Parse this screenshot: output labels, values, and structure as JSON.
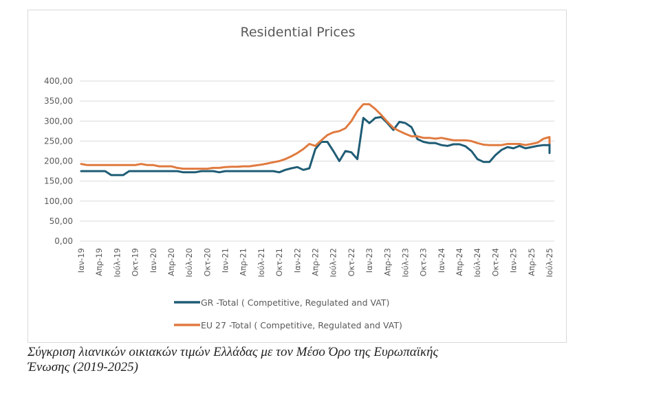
{
  "chart_data": {
    "type": "line",
    "title": "Residential Prices",
    "xlabel": "",
    "ylabel": "",
    "ylim": [
      0,
      400
    ],
    "yticks": [
      0,
      50,
      100,
      150,
      200,
      250,
      300,
      350,
      400
    ],
    "ytick_labels": [
      "0,00",
      "50,00",
      "100,00",
      "150,00",
      "200,00",
      "250,00",
      "300,00",
      "350,00",
      "400,00"
    ],
    "grid": true,
    "legend_position": "bottom",
    "x_start": "2019-01",
    "x_end": "2025-07",
    "x_tick_labels": [
      "Ιαν-19",
      "Απρ-19",
      "Ιούλ-19",
      "Οκτ-19",
      "Ιαν-20",
      "Απρ-20",
      "Ιούλ-20",
      "Οκτ-20",
      "Ιαν-21",
      "Απρ-21",
      "Ιούλ-21",
      "Οκτ-21",
      "Ιαν-22",
      "Απρ-22",
      "Ιούλ-22",
      "Οκτ-22",
      "Ιαν-23",
      "Απρ-23",
      "Ιούλ-23",
      "Οκτ-23",
      "Ιαν-24",
      "Απρ-24",
      "Ιούλ-24",
      "Οκτ-24",
      "Ιαν-25",
      "Απρ-25",
      "Ιούλ-25"
    ],
    "series": [
      {
        "name": "GR -Total ( Competitive, Regulated and VAT)",
        "color": "#1f5c75",
        "values": [
          175,
          175,
          175,
          175,
          175,
          165,
          165,
          165,
          175,
          175,
          175,
          175,
          175,
          175,
          175,
          175,
          175,
          172,
          172,
          172,
          175,
          175,
          175,
          172,
          175,
          175,
          175,
          175,
          175,
          175,
          175,
          175,
          175,
          172,
          178,
          182,
          185,
          178,
          182,
          230,
          248,
          248,
          225,
          200,
          225,
          222,
          205,
          308,
          295,
          308,
          310,
          295,
          278,
          298,
          295,
          285,
          255,
          248,
          245,
          245,
          240,
          238,
          242,
          242,
          237,
          225,
          205,
          198,
          198,
          215,
          228,
          235,
          232,
          238,
          232,
          235,
          238,
          240,
          240,
          220,
          235,
          242,
          252
        ]
      },
      {
        "name": "EU 27 -Total ( Competitive, Regulated and VAT)",
        "color": "#e07a3f",
        "values": [
          193,
          190,
          190,
          190,
          190,
          190,
          190,
          190,
          190,
          190,
          193,
          190,
          190,
          187,
          187,
          187,
          183,
          181,
          181,
          181,
          181,
          181,
          183,
          183,
          185,
          186,
          186,
          187,
          187,
          189,
          191,
          194,
          197,
          200,
          205,
          212,
          220,
          230,
          243,
          238,
          252,
          265,
          272,
          275,
          282,
          300,
          325,
          342,
          342,
          330,
          315,
          298,
          283,
          275,
          268,
          262,
          262,
          258,
          258,
          256,
          258,
          255,
          252,
          252,
          252,
          250,
          245,
          241,
          240,
          240,
          240,
          243,
          243,
          243,
          240,
          243,
          246,
          256,
          260,
          255,
          247,
          247,
          245,
          252,
          255
        ]
      }
    ]
  },
  "caption": {
    "line1": "Σύγκριση λιανικών οικιακών τιμών Ελλάδας με τον Μέσο Όρο της Ευρωπαϊκής",
    "line2": "Ένωσης (2019-2025)"
  }
}
